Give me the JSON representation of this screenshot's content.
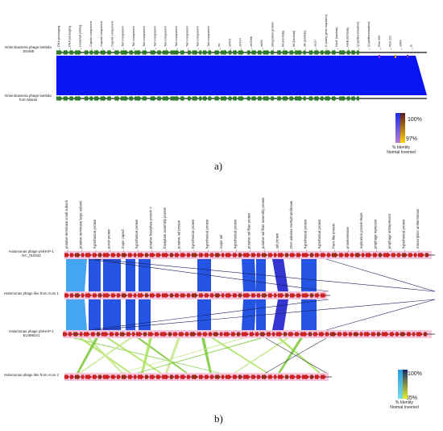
{
  "panel_a": {
    "letter": "a)",
    "genomes": [
      {
        "name": "Enterobacteria phage lambda J02459"
      },
      {
        "name": "Enterobacteria phage lambda from Maras"
      }
    ],
    "gene_labels": [
      "DNA packaging",
      "DNA packaging",
      "Head-tail joining",
      "Capsid component",
      "Capsid component",
      "Capsid component",
      "Tail component",
      "Tail component",
      "Tail component",
      "Tail component",
      "Tail component",
      "Tail component",
      "Tail component",
      "Tail component",
      "Tail component",
      "ea",
      "orf401",
      "orf314",
      "orf206b",
      "ea59",
      "Integration protein",
      "Kil (lambda)",
      "Kil (lambda)",
      "Sit (lambda)",
      "ea10",
      "N (early gene regulator)",
      "NinG (lambda)",
      "NinB (lambda)",
      "Q (antitermination)",
      "Q (antitermination)",
      "Ren 290",
      "Ren 221",
      "orf64",
      "R"
    ],
    "legend": {
      "max": "100%",
      "min": "97%",
      "title_line1": "% Identity",
      "title_line2": "Normal Inverted",
      "colors": {
        "normal_top": "#1a2fe0",
        "normal_bottom": "#b87bd8",
        "inverted_top": "#5a1a1a",
        "inverted_bottom": "#ffd400"
      }
    },
    "colors": {
      "gene": "#2f7a2a",
      "block": "#0a14f2"
    }
  },
  "panel_b": {
    "letter": "b)",
    "genomes": [
      {
        "name": "Halomonas phage phiHAP-1 NC_010342"
      },
      {
        "name": "Halomonas phage like from Acos 1"
      },
      {
        "name": "Halomonas phage phiHAP-1 EU399241"
      },
      {
        "name": "Halomonas phage like from Acos 2"
      }
    ],
    "gene_labels": [
      "putative terminase small subunit",
      "putative terminase large subunit",
      "hypothetical protein",
      "portal protein",
      "major capsid",
      "hypothetical protein",
      "putative baseplate protein V",
      "baseplate assembly protein",
      "putative tail protein",
      "hypothetical protein",
      "hypothetical protein",
      "major tail",
      "hypothetical protein",
      "putative tail fiber protein",
      "putative tail fiber assembly protein",
      "tail protein",
      "DNA adenine methyltransferase",
      "hypothetical protein",
      "hypothetical protein",
      "ParA-like protein",
      "protelomerase",
      "replication protein RepA",
      "prophage repressor",
      "prophage antirepressor",
      "hypothetical protein",
      "transcription antiterminator"
    ],
    "legend": {
      "max": "100%",
      "min": "65%",
      "title_line1": "% Identity",
      "title_line2": "Normal Inverted",
      "colors": {
        "normal_top": "#2aa0d8",
        "normal_bottom": "#7ad8e8",
        "inverted_top": "#1a2a6a",
        "inverted_bottom": "#e8f020"
      }
    },
    "colors": {
      "gene": "#cc2222",
      "gene_alt": "#9a2a1a",
      "highlight": "#f8b8d8",
      "block": "#1a4be0",
      "block_light": "#3aa0f0",
      "green": "#7ac83a"
    }
  }
}
